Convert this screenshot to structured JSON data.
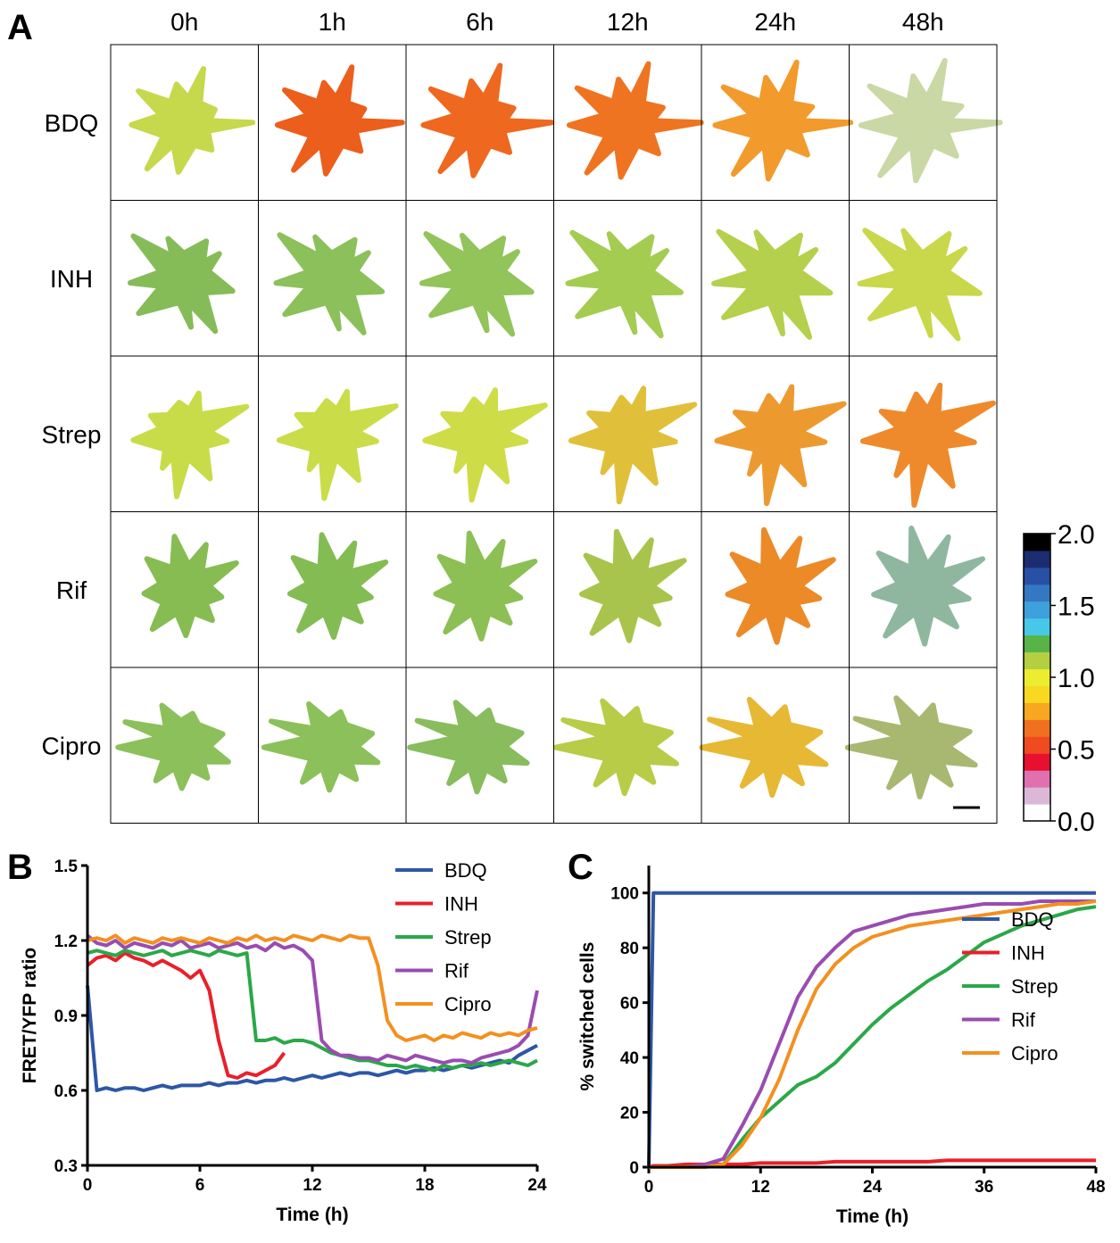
{
  "panel_a": {
    "panel_label": "A",
    "columns": [
      "0h",
      "1h",
      "6h",
      "12h",
      "24h",
      "48h"
    ],
    "rows": [
      "BDQ",
      "INH",
      "Strep",
      "Rif",
      "Cipro"
    ],
    "colorbar_ticks": [
      {
        "value": 0,
        "label": "0.0"
      },
      {
        "value": 0.5,
        "label": "0.5"
      },
      {
        "value": 1,
        "label": "1.0"
      },
      {
        "value": 1.5,
        "label": "1.5"
      },
      {
        "value": 2,
        "label": "2.0"
      }
    ],
    "colorbar_lim": [
      0,
      2
    ]
  },
  "chart_data": [
    {
      "type": "line",
      "panel_label": "B",
      "x_label": "Time (h)",
      "y_label": "FRET/YFP ratio",
      "xlim": [
        0,
        24
      ],
      "ylim": [
        0.3,
        1.5
      ],
      "xticks": [
        0,
        6,
        12,
        18,
        24
      ],
      "yticks": [
        0.3,
        0.6,
        0.9,
        1.2,
        1.5
      ],
      "legend": "upper right",
      "x": [
        0,
        0.5,
        1,
        1.5,
        2,
        2.5,
        3,
        3.5,
        4,
        4.5,
        5,
        5.5,
        6,
        6.5,
        7,
        7.5,
        8,
        8.5,
        9,
        9.5,
        10,
        10.5,
        11,
        11.5,
        12,
        12.5,
        13,
        13.5,
        14,
        14.5,
        15,
        15.5,
        16,
        16.5,
        17,
        17.5,
        18,
        18.5,
        19,
        19.5,
        20,
        20.5,
        21,
        21.5,
        22,
        22.5,
        23,
        23.5,
        24
      ],
      "series": [
        {
          "name": "BDQ",
          "color": "#2d57a6",
          "values": [
            1.02,
            0.6,
            0.61,
            0.6,
            0.61,
            0.61,
            0.6,
            0.61,
            0.62,
            0.61,
            0.62,
            0.62,
            0.62,
            0.63,
            0.62,
            0.63,
            0.63,
            0.64,
            0.63,
            0.64,
            0.64,
            0.65,
            0.64,
            0.65,
            0.66,
            0.65,
            0.66,
            0.67,
            0.66,
            0.67,
            0.67,
            0.66,
            0.67,
            0.68,
            0.67,
            0.68,
            0.68,
            0.69,
            0.68,
            0.69,
            0.7,
            0.69,
            0.7,
            0.71,
            0.72,
            0.71,
            0.74,
            0.76,
            0.78
          ]
        },
        {
          "name": "INH",
          "color": "#e8202a",
          "values": [
            1.1,
            1.13,
            1.14,
            1.12,
            1.15,
            1.13,
            1.12,
            1.1,
            1.12,
            1.1,
            1.08,
            1.05,
            1.08,
            1.0,
            0.8,
            0.66,
            0.65,
            0.67,
            0.66,
            0.68,
            0.7,
            0.75,
            null,
            null,
            null,
            null,
            null,
            null,
            null,
            null,
            null,
            null,
            null,
            null,
            null,
            null,
            null,
            null,
            null,
            null,
            null,
            null,
            null,
            null,
            null,
            null,
            null,
            null,
            null
          ]
        },
        {
          "name": "Strep",
          "color": "#2aa848",
          "values": [
            1.15,
            1.16,
            1.15,
            1.14,
            1.16,
            1.15,
            1.14,
            1.15,
            1.16,
            1.14,
            1.15,
            1.16,
            1.15,
            1.14,
            1.16,
            1.15,
            1.14,
            1.15,
            0.8,
            0.8,
            0.81,
            0.79,
            0.8,
            0.8,
            0.79,
            0.77,
            0.75,
            0.74,
            0.73,
            0.72,
            0.72,
            0.71,
            0.7,
            0.7,
            0.69,
            0.7,
            0.69,
            0.68,
            0.7,
            0.69,
            0.7,
            0.7,
            0.71,
            0.7,
            0.71,
            0.72,
            0.71,
            0.7,
            0.72
          ]
        },
        {
          "name": "Rif",
          "color": "#9a4cb0",
          "values": [
            1.22,
            1.19,
            1.18,
            1.2,
            1.17,
            1.19,
            1.18,
            1.17,
            1.19,
            1.18,
            1.2,
            1.17,
            1.18,
            1.19,
            1.17,
            1.18,
            1.19,
            1.17,
            1.18,
            1.16,
            1.19,
            1.17,
            1.18,
            1.16,
            1.12,
            0.8,
            0.76,
            0.74,
            0.74,
            0.73,
            0.73,
            0.72,
            0.74,
            0.73,
            0.72,
            0.74,
            0.73,
            0.72,
            0.71,
            0.72,
            0.72,
            0.71,
            0.73,
            0.74,
            0.75,
            0.76,
            0.78,
            0.82,
            1.0
          ]
        },
        {
          "name": "Cipro",
          "color": "#f39020",
          "values": [
            1.2,
            1.21,
            1.2,
            1.22,
            1.19,
            1.21,
            1.2,
            1.19,
            1.21,
            1.2,
            1.21,
            1.2,
            1.19,
            1.21,
            1.2,
            1.19,
            1.21,
            1.2,
            1.22,
            1.2,
            1.21,
            1.2,
            1.22,
            1.21,
            1.2,
            1.22,
            1.21,
            1.2,
            1.22,
            1.21,
            1.21,
            1.1,
            0.88,
            0.82,
            0.8,
            0.81,
            0.82,
            0.8,
            0.82,
            0.81,
            0.83,
            0.82,
            0.81,
            0.83,
            0.82,
            0.83,
            0.82,
            0.84,
            0.85
          ]
        }
      ]
    },
    {
      "type": "line",
      "panel_label": "C",
      "x_label": "Time (h)",
      "y_label": "% switched cells",
      "xlim": [
        0,
        48
      ],
      "ylim": [
        0,
        110
      ],
      "xticks": [
        0,
        12,
        24,
        36,
        48
      ],
      "yticks": [
        0,
        20,
        40,
        60,
        80,
        100
      ],
      "legend": "lower right",
      "x": [
        0,
        0.5,
        2,
        4,
        6,
        8,
        10,
        12,
        14,
        16,
        18,
        20,
        22,
        24,
        26,
        28,
        30,
        32,
        34,
        36,
        38,
        40,
        42,
        44,
        46,
        48
      ],
      "series": [
        {
          "name": "BDQ",
          "color": "#2d57a6",
          "values": [
            0,
            100,
            100,
            100,
            100,
            100,
            100,
            100,
            100,
            100,
            100,
            100,
            100,
            100,
            100,
            100,
            100,
            100,
            100,
            100,
            100,
            100,
            100,
            100,
            100,
            100
          ]
        },
        {
          "name": "INH",
          "color": "#e8202a",
          "values": [
            0,
            0.5,
            0.5,
            1,
            1,
            1,
            1,
            1.5,
            1.5,
            1.5,
            1.5,
            2,
            2,
            2,
            2,
            2,
            2,
            2.5,
            2.5,
            2.5,
            2.5,
            2.5,
            2.5,
            2.5,
            2.5,
            2.5
          ]
        },
        {
          "name": "Strep",
          "color": "#2aa848",
          "values": [
            0,
            0,
            0,
            0,
            0,
            1,
            10,
            18,
            24,
            30,
            33,
            38,
            45,
            52,
            58,
            63,
            68,
            72,
            77,
            82,
            85,
            88,
            90,
            92,
            94,
            95
          ]
        },
        {
          "name": "Rif",
          "color": "#9a4cb0",
          "values": [
            0,
            0,
            0,
            0,
            1,
            3,
            15,
            28,
            45,
            62,
            73,
            80,
            86,
            88,
            90,
            92,
            93,
            94,
            95,
            96,
            96,
            96,
            97,
            97,
            97,
            97
          ]
        },
        {
          "name": "Cipro",
          "color": "#f39020",
          "values": [
            0,
            0,
            0,
            0,
            0,
            1,
            8,
            18,
            32,
            50,
            65,
            74,
            80,
            84,
            86,
            88,
            89,
            90,
            91,
            92,
            93,
            94,
            95,
            96,
            96,
            97
          ]
        }
      ]
    }
  ]
}
